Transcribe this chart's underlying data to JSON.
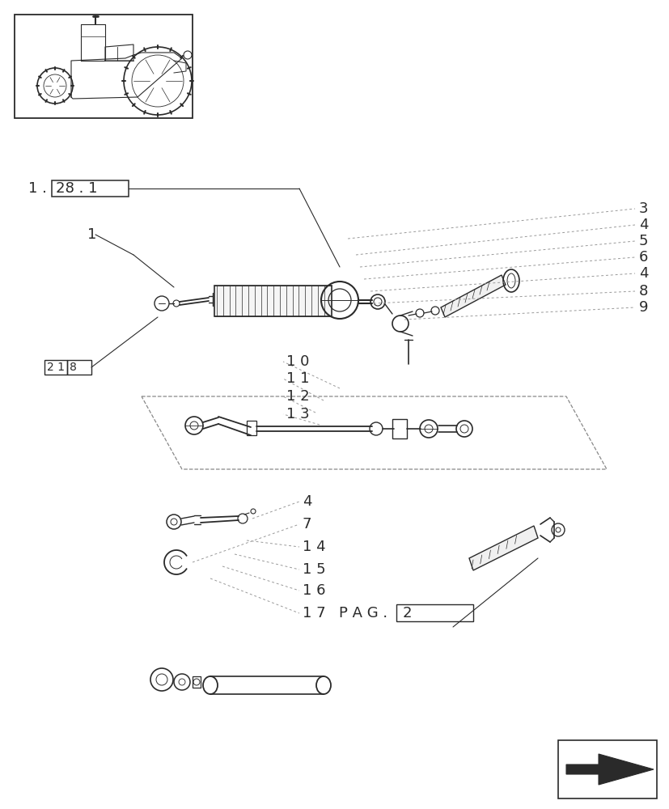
{
  "bg_color": "#ffffff",
  "lc": "#2a2a2a",
  "llc": "#999999",
  "dc": "#888888",
  "figsize": [
    8.28,
    10.0
  ],
  "dpi": 100
}
